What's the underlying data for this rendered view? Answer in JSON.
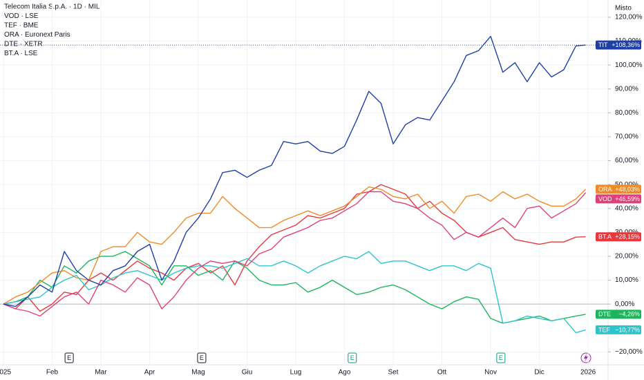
{
  "chart_data": {
    "type": "line",
    "title": "Telecom Italia S.p.A. · 1D · MIL",
    "axis_mode": "Misto",
    "xlim": [
      -0.07,
      12.41
    ],
    "ylim": [
      -25.4,
      127.2
    ],
    "grid": true,
    "xticks": [
      {
        "value": 0,
        "label": "2025"
      },
      {
        "value": 1,
        "label": "Feb"
      },
      {
        "value": 2,
        "label": "Mar"
      },
      {
        "value": 3,
        "label": "Apr"
      },
      {
        "value": 4,
        "label": "Mag"
      },
      {
        "value": 5,
        "label": "Giu"
      },
      {
        "value": 6,
        "label": "Lug"
      },
      {
        "value": 7,
        "label": "Ago"
      },
      {
        "value": 8,
        "label": "Set"
      },
      {
        "value": 9,
        "label": "Ott"
      },
      {
        "value": 10,
        "label": "Nov"
      },
      {
        "value": 11,
        "label": "Dic"
      },
      {
        "value": 12,
        "label": "2026"
      }
    ],
    "yticks": [
      {
        "value": -20,
        "label": "−20,00%"
      },
      {
        "value": 0,
        "label": "0,00%"
      },
      {
        "value": 10,
        "label": "10,00%"
      },
      {
        "value": 20,
        "label": "20,00%"
      },
      {
        "value": 30,
        "label": "30,00%"
      },
      {
        "value": 40,
        "label": "40,00%"
      },
      {
        "value": 50,
        "label": "50,00%"
      },
      {
        "value": 60,
        "label": "60,00%"
      },
      {
        "value": 70,
        "label": "70,00%"
      },
      {
        "value": 80,
        "label": "80,00%"
      },
      {
        "value": 90,
        "label": "90,00%"
      },
      {
        "value": 100,
        "label": "100,00%"
      },
      {
        "value": 110,
        "label": "110,00%"
      },
      {
        "value": 120,
        "label": "120,00%"
      }
    ],
    "events": [
      {
        "x": 1.35,
        "label": "E"
      },
      {
        "x": 4.07,
        "label": "E"
      },
      {
        "x": 7.16,
        "label": "E"
      },
      {
        "x": 10.21,
        "label": "E"
      }
    ],
    "x": [
      0,
      0.25,
      0.5,
      0.75,
      1,
      1.25,
      1.5,
      1.75,
      2,
      2.25,
      2.5,
      2.75,
      3,
      3.25,
      3.5,
      3.75,
      4,
      4.25,
      4.5,
      4.75,
      5,
      5.25,
      5.5,
      5.75,
      6,
      6.25,
      6.5,
      6.75,
      7,
      7.25,
      7.5,
      7.75,
      8,
      8.25,
      8.5,
      8.75,
      9,
      9.25,
      9.5,
      9.75,
      10,
      10.25,
      10.5,
      10.75,
      11,
      11.25,
      11.5,
      11.75,
      11.95
    ],
    "series": [
      {
        "name": "TIT",
        "color": "#1e3fa8",
        "last_label": "+108,36%",
        "values": [
          0,
          -1,
          3,
          8,
          5,
          22,
          14,
          10,
          8,
          14,
          16,
          22,
          25,
          10,
          18,
          30,
          36,
          44,
          55,
          56,
          53,
          56,
          58,
          68,
          67,
          68,
          64,
          63,
          66,
          77,
          89,
          84,
          67,
          75,
          78,
          77,
          85,
          93,
          104,
          106,
          112,
          97,
          101,
          93,
          101,
          95,
          98,
          108,
          108.36
        ]
      },
      {
        "name": "VOD",
        "legend": "VOD · LSE",
        "color": "#e0407a",
        "last_label": "+46,59%",
        "values": [
          0,
          -2,
          -3,
          -5,
          -1,
          3,
          5,
          0,
          10,
          8,
          5,
          11,
          8,
          -2,
          3,
          10,
          15,
          18,
          17,
          18,
          16,
          21,
          23,
          28,
          30,
          32,
          35,
          36,
          39,
          42,
          47,
          47,
          43,
          42,
          40,
          36,
          33,
          27,
          30,
          28,
          32,
          36,
          32,
          40,
          41,
          36,
          39,
          42,
          46.59
        ]
      },
      {
        "name": "TEF",
        "legend": "TEF · BME",
        "color": "#2ec4cc",
        "last_label": "−10,77%",
        "values": [
          0,
          1,
          2,
          3,
          7,
          10,
          12,
          6,
          8,
          11,
          13,
          14,
          12,
          10,
          13,
          15,
          16,
          16,
          15,
          17,
          19,
          16,
          16,
          18,
          16,
          13,
          16,
          18,
          20,
          19,
          22,
          17,
          18,
          18,
          16,
          14,
          16,
          16,
          14,
          17,
          15,
          -8,
          -7,
          -5,
          -6,
          -7,
          -6,
          -12,
          -10.77
        ]
      },
      {
        "name": "ORA",
        "legend": "ORA · Euronext Paris",
        "color": "#f08a24",
        "last_label": "+48,03%",
        "values": [
          0,
          3,
          5,
          9,
          13,
          14,
          11,
          10,
          22,
          24,
          24,
          30,
          26,
          25,
          30,
          36,
          38,
          38,
          45,
          40,
          36,
          32,
          32,
          35,
          37,
          39,
          37,
          39,
          41,
          45,
          49,
          48,
          45,
          44,
          46,
          40,
          43,
          38,
          45,
          46,
          43,
          47,
          44,
          46,
          43,
          41,
          41,
          44,
          48.03
        ]
      },
      {
        "name": "DTE",
        "legend": "DTE · XETR",
        "color": "#1cb55c",
        "last_label": "−4,26%",
        "values": [
          0,
          1,
          3,
          10,
          7,
          16,
          13,
          18,
          20,
          20,
          22,
          19,
          16,
          8,
          16,
          16,
          12,
          14,
          10,
          18,
          15,
          10,
          8,
          8,
          9,
          5,
          7,
          10,
          7,
          4,
          5,
          7,
          8,
          6,
          3,
          0,
          -2,
          1,
          3,
          2,
          -6,
          -8,
          -7,
          -6,
          -5,
          -7,
          -6,
          -5,
          -4.26
        ]
      },
      {
        "name": "BT.A",
        "legend": "BT.A · LSE",
        "color": "#e8383d",
        "last_label": "+28,15%",
        "values": [
          0,
          -2,
          3,
          -3,
          0,
          5,
          4,
          10,
          13,
          10,
          14,
          18,
          15,
          13,
          10,
          15,
          17,
          13,
          16,
          8,
          18,
          24,
          29,
          31,
          33,
          37,
          36,
          38,
          40,
          46,
          47,
          50,
          48,
          46,
          40,
          43,
          38,
          35,
          30,
          28,
          30,
          32,
          27,
          26,
          25,
          26,
          26,
          28,
          28.15
        ]
      }
    ]
  }
}
